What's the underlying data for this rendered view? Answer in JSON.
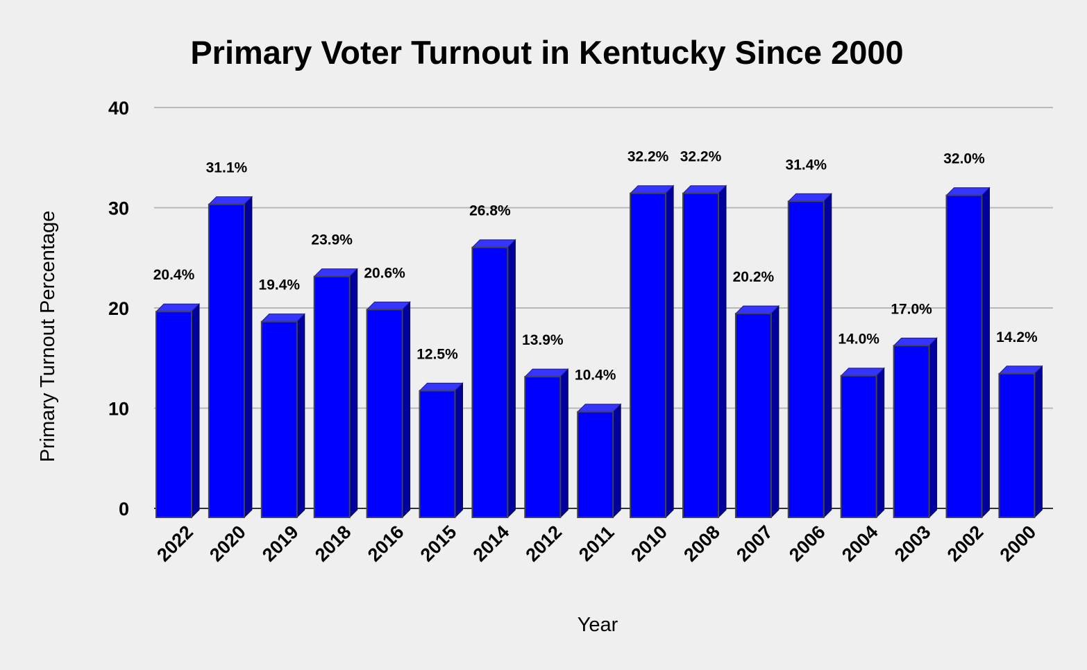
{
  "chart_data": {
    "type": "bar",
    "title": "Primary Voter Turnout in Kentucky Since 2000",
    "xlabel": "Year",
    "ylabel": "Primary Turnout Percentage",
    "ylim": [
      0,
      40
    ],
    "yticks": [
      0,
      10,
      20,
      30,
      40
    ],
    "grid": true,
    "legend": "none",
    "bar_color": "#0000ff",
    "bar_side_color": "#00009e",
    "bar_top_color": "#3535ff",
    "categories": [
      "2022",
      "2020",
      "2019",
      "2018",
      "2016",
      "2015",
      "2014",
      "2012",
      "2011",
      "2010",
      "2008",
      "2007",
      "2006",
      "2004",
      "2003",
      "2002",
      "2000"
    ],
    "values": [
      20.4,
      31.1,
      19.4,
      23.9,
      20.6,
      12.5,
      26.8,
      13.9,
      10.4,
      32.2,
      32.2,
      20.2,
      31.4,
      14.0,
      17.0,
      32.0,
      14.2
    ],
    "data_labels": [
      "20.4%",
      "31.1%",
      "19.4%",
      "23.9%",
      "20.6%",
      "12.5%",
      "26.8%",
      "13.9%",
      "10.4%",
      "32.2%",
      "32.2%",
      "20.2%",
      "31.4%",
      "14.0%",
      "17.0%",
      "32.0%",
      "14.2%"
    ]
  }
}
